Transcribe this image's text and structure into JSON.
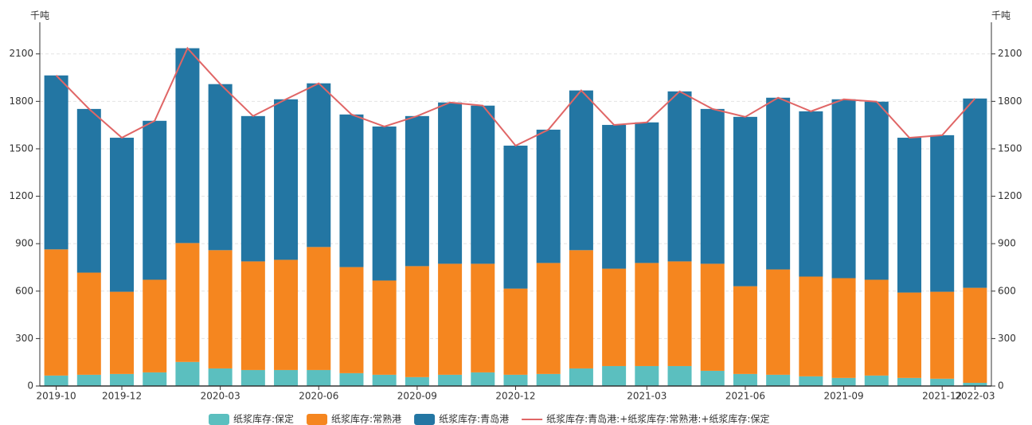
{
  "chart_data": {
    "type": "bar",
    "unit_left": "千吨",
    "unit_right": "千吨",
    "categories": [
      "2019-10",
      null,
      "2019-12",
      null,
      null,
      "2020-03",
      null,
      null,
      "2020-06",
      null,
      null,
      "2020-09",
      null,
      null,
      "2020-12",
      null,
      null,
      null,
      "2021-03",
      null,
      null,
      "2021-06",
      null,
      null,
      "2021-09",
      null,
      null,
      "2021-12",
      "2022-03"
    ],
    "series": [
      {
        "name": "纸浆库存:保定",
        "color": "#5bbfbf",
        "kind": "bar",
        "values": [
          66,
          71,
          76,
          86,
          152,
          111,
          101,
          101,
          101,
          81,
          71,
          56,
          71,
          86,
          71,
          76,
          111,
          126,
          126,
          126,
          96,
          76,
          71,
          61,
          51,
          66,
          51,
          46,
          20
        ]
      },
      {
        "name": "纸浆库存:常熟港",
        "color": "#f5861f",
        "kind": "bar",
        "values": [
          798,
          646,
          520,
          586,
          752,
          748,
          687,
          697,
          778,
          671,
          596,
          702,
          702,
          687,
          545,
          702,
          748,
          616,
          652,
          662,
          677,
          555,
          666,
          631,
          631,
          606,
          540,
          550,
          601
        ]
      },
      {
        "name": "纸浆库存:青岛港",
        "color": "#2376a3",
        "kind": "bar",
        "values": [
          1100,
          1035,
          974,
          1005,
          1232,
          1050,
          919,
          1015,
          1035,
          965,
          974,
          949,
          1020,
          1000,
          904,
          843,
          1010,
          909,
          889,
          1075,
          979,
          1071,
          1086,
          1045,
          1131,
          1126,
          979,
          990,
          1197
        ]
      },
      {
        "name": "纸浆库存:青岛港:+纸浆库存:常熟港:+纸浆库存:保定",
        "color": "#e06666",
        "kind": "line",
        "values": [
          1964,
          1752,
          1570,
          1677,
          2136,
          1909,
          1707,
          1813,
          1914,
          1717,
          1641,
          1707,
          1793,
          1773,
          1520,
          1621,
          1869,
          1651,
          1667,
          1863,
          1752,
          1702,
          1823,
          1737,
          1813,
          1798,
          1570,
          1586,
          1818
        ]
      }
    ],
    "ylim": [
      0,
      2300
    ],
    "yticks": [
      0,
      300,
      600,
      900,
      1200,
      1500,
      1800,
      2100
    ],
    "y2lim": [
      0,
      2300
    ],
    "y2ticks": [
      0,
      300,
      600,
      900,
      1200,
      1500,
      1800,
      2100
    ],
    "grid": true,
    "legend": "bottom"
  }
}
